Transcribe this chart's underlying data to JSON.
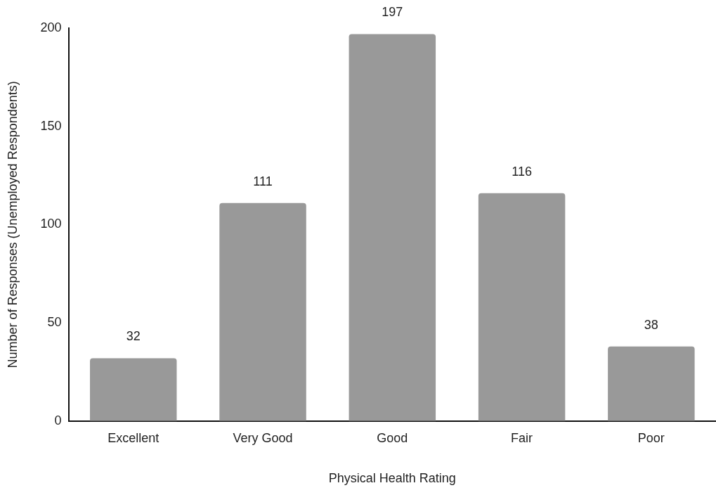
{
  "chart_data": {
    "type": "bar",
    "xlabel": "Physical Health Rating",
    "ylabel": "Number of Responses (Unemployed Respondents)",
    "categories": [
      "Excellent",
      "Very Good",
      "Good",
      "Fair",
      "Poor"
    ],
    "values": [
      32,
      111,
      197,
      116,
      38
    ],
    "color": "#999999",
    "ylim": [
      0,
      200
    ],
    "yticks": [
      0,
      50,
      100,
      150,
      200
    ],
    "grid": false,
    "legend": false,
    "data_labels": true
  }
}
